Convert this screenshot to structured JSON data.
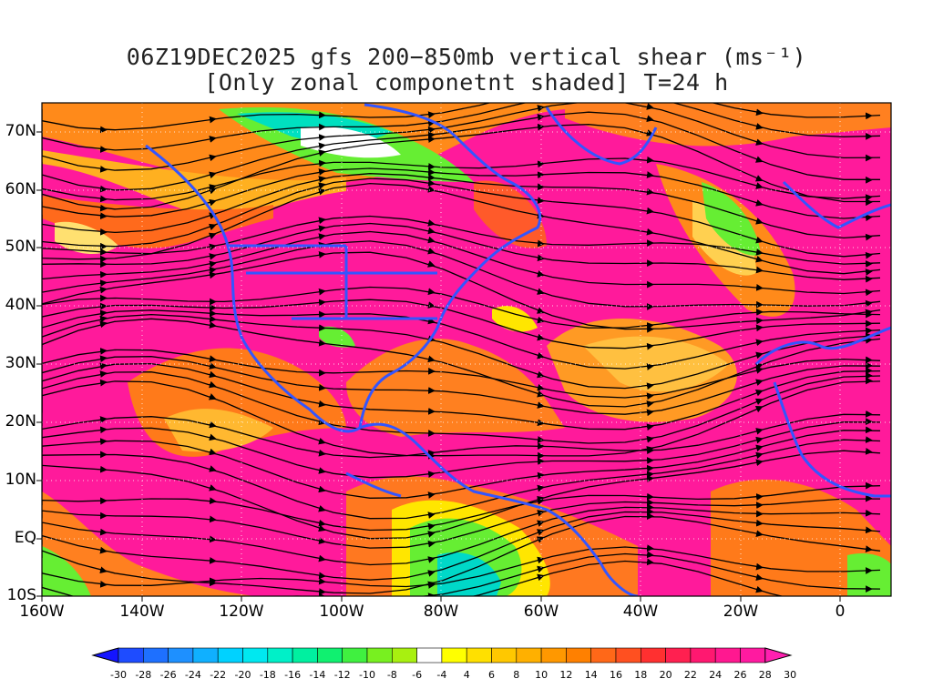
{
  "title": {
    "line1": "06Z19DEC2025 gfs 200−850mb vertical shear (ms⁻¹)",
    "line2": "[Only zonal componetnt shaded] T=24 h"
  },
  "map": {
    "lat_labels": [
      "70N",
      "60N",
      "50N",
      "40N",
      "30N",
      "20N",
      "10N",
      "EQ",
      "10S"
    ],
    "lon_labels": [
      "160W",
      "140W",
      "120W",
      "100W",
      "80W",
      "60W",
      "40W",
      "20W",
      "0"
    ],
    "colors": {
      "magenta": "#ff1a9b",
      "red": "#ff3050",
      "orange": "#ff7a1a",
      "light_orange": "#ffa81f",
      "yellow": "#ffe600",
      "green": "#66ee33",
      "cyan": "#00d8c8",
      "coastline": "#3355ff",
      "streamline": "#000000"
    }
  },
  "colorbar": {
    "labels": [
      "-30",
      "-28",
      "-26",
      "-24",
      "-22",
      "-20",
      "-18",
      "-16",
      "-14",
      "-12",
      "-10",
      "-8",
      "-6",
      "-4",
      "4",
      "6",
      "8",
      "10",
      "12",
      "14",
      "16",
      "18",
      "20",
      "22",
      "24",
      "26",
      "28",
      "30"
    ],
    "colors": [
      "#1414ff",
      "#1e4cff",
      "#1e70ff",
      "#1e90ff",
      "#10b0ff",
      "#00d2ff",
      "#00e8f0",
      "#00f0c8",
      "#00f0a0",
      "#10f070",
      "#40f040",
      "#78f020",
      "#a8f010",
      "#ffffff",
      "#ffff00",
      "#ffe000",
      "#ffc800",
      "#ffb000",
      "#ff9800",
      "#ff8000",
      "#ff6818",
      "#ff5020",
      "#ff3030",
      "#ff2050",
      "#ff1870",
      "#ff1890",
      "#ff1aa0",
      "#ff20b0"
    ]
  }
}
